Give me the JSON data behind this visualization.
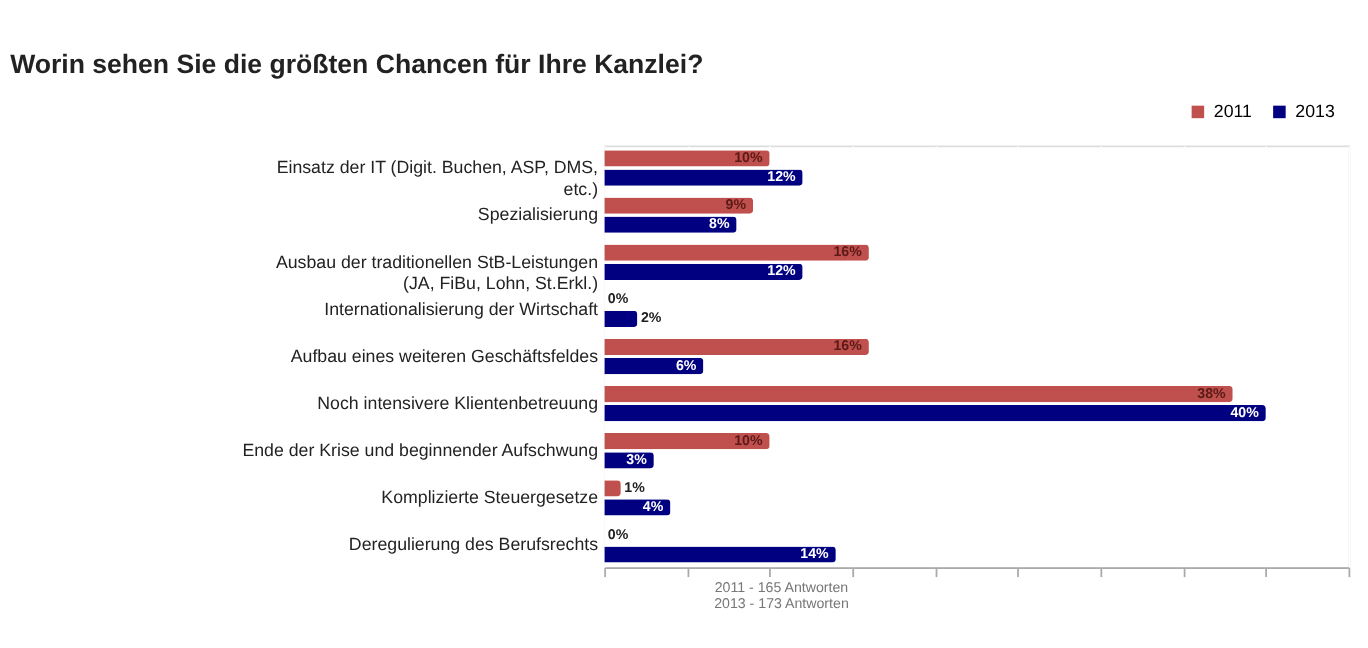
{
  "chart_data": {
    "type": "bar",
    "orientation": "horizontal",
    "title": "Worin sehen Sie die größten Chancen für Ihre Kanzlei?",
    "categories": [
      "Einsatz der IT (Digit. Buchen, ASP, DMS, etc.)",
      "Spezialisierung",
      "Ausbau der traditionellen StB-Leistungen (JA, FiBu, Lohn, St.Erkl.)",
      "Internationalisierung der Wirtschaft",
      "Aufbau eines weiteren Geschäftsfeldes",
      "Noch intensivere Klientenbetreuung",
      "Ende der Krise und beginnender Aufschwung",
      "Komplizierte Steuergesetze",
      "Deregulierung des Berufsrechts"
    ],
    "series": [
      {
        "name": "2011",
        "color": "#c0504d",
        "values": [
          10,
          9,
          16,
          0,
          16,
          38,
          10,
          1,
          0
        ],
        "value_labels": [
          "10%",
          "9%",
          "16%",
          "0%",
          "16%",
          "38%",
          "10%",
          "1%",
          "0%"
        ]
      },
      {
        "name": "2013",
        "color": "#000080",
        "values": [
          12,
          8,
          12,
          2,
          6,
          40,
          3,
          4,
          14
        ],
        "value_labels": [
          "12%",
          "8%",
          "12%",
          "2%",
          "6%",
          "40%",
          "3%",
          "4%",
          "14%"
        ]
      }
    ],
    "xlim": [
      0,
      45
    ],
    "xticks": [
      {
        "value": 0,
        "label": null
      },
      {
        "value": 5,
        "label": null
      },
      {
        "value": 10,
        "label": null
      },
      {
        "value": 15,
        "label": null
      },
      {
        "value": 20,
        "label": null
      },
      {
        "value": 25,
        "label": null
      },
      {
        "value": 30,
        "label": null
      },
      {
        "value": 35,
        "label": null
      },
      {
        "value": 40,
        "label": null
      },
      {
        "value": 45,
        "label": null
      }
    ],
    "tick_labels": "y",
    "grid": "x",
    "legend": "top right",
    "annotations": [
      "2011 - 165 Antworten",
      "2013 - 173 Antworten"
    ]
  }
}
